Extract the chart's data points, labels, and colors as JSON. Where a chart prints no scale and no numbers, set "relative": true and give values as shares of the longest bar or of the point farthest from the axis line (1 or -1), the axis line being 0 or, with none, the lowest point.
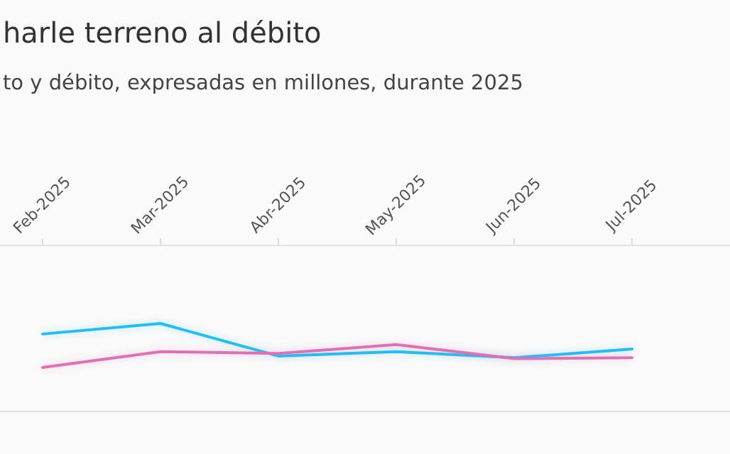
{
  "chart_data": {
    "type": "line",
    "title": "harle terreno al débito",
    "subtitle": "to y débito, expresadas en millones, durante 2025",
    "relative": true,
    "marker": "none",
    "line_style": "solid",
    "categories": [
      "Feb-2025",
      "Mar-2025",
      "Abr-2025",
      "May-2025",
      "Jun-2025",
      "Jul-2025"
    ],
    "series": [
      {
        "color": "#22bdf5",
        "values": [
          0.88,
          1.0,
          0.63,
          0.68,
          0.61,
          0.71
        ]
      },
      {
        "color": "#e070b4",
        "values": [
          0.5,
          0.68,
          0.66,
          0.76,
          0.6,
          0.61
        ]
      }
    ]
  }
}
